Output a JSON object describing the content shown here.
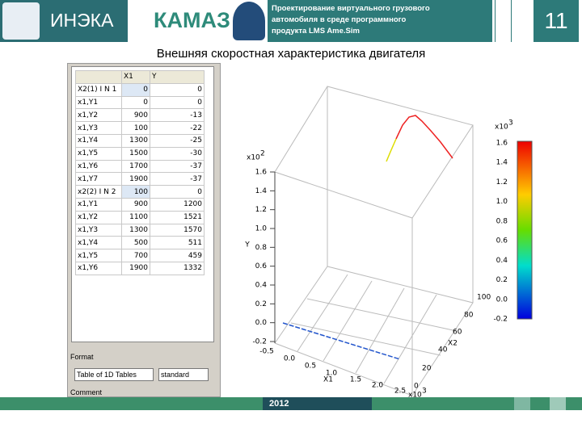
{
  "header": {
    "left_logo_text": "ИНЭКА",
    "brand": "КАМАЗ",
    "project_lines": [
      "Проектирование виртуального грузового",
      "автомобиля в среде программного",
      "продукта LMS Ame.Sim"
    ],
    "slide_number": "11"
  },
  "title": "Внешняя скоростная характеристика двигателя",
  "table": {
    "columns": [
      "X1",
      "Y"
    ],
    "rows": [
      [
        "X2(1) I N 1",
        0,
        0
      ],
      [
        "x1,Y1",
        0,
        0
      ],
      [
        "x1,Y2",
        900,
        -13
      ],
      [
        "x1,Y3",
        100,
        -22
      ],
      [
        "x1,Y4",
        1300,
        -25
      ],
      [
        "x1,Y5",
        1500,
        -30
      ],
      [
        "x1,Y6",
        1700,
        -37
      ],
      [
        "x1,Y7",
        1900,
        -37
      ],
      [
        "x2(2) I N 2",
        100,
        0
      ],
      [
        "x1,Y1",
        900,
        1200
      ],
      [
        "x1,Y2",
        1100,
        1521
      ],
      [
        "x1,Y3",
        1300,
        1570
      ],
      [
        "x1,Y4",
        500,
        511
      ],
      [
        "x1,Y5",
        700,
        459
      ],
      [
        "x1,Y6",
        1900,
        1332
      ]
    ]
  },
  "format": {
    "label": "Format",
    "options": [
      "Table of 1D Tables",
      "standard"
    ]
  },
  "comment_label": "Comment",
  "plot": {
    "z_label": "Y",
    "x1_label": "X1",
    "x2_label": "X2",
    "z_scale": {
      "base": "x10",
      "exp": "2"
    },
    "x1_scale": {
      "base": "x10",
      "exp": "3"
    },
    "colorbar_scale": {
      "base": "x10",
      "exp": "3"
    },
    "z_ticks": [
      "1.6",
      "1.4",
      "1.2",
      "1.0",
      "0.8",
      "0.6",
      "0.4",
      "0.2",
      "0.0",
      "-0.2"
    ],
    "x1_ticks": [
      "-0.5",
      "0.0",
      "0.5",
      "1.0",
      "1.5",
      "2.0",
      "2.5"
    ],
    "x2_ticks": [
      "0",
      "20",
      "40",
      "60",
      "80",
      "100"
    ],
    "colorbar_ticks": [
      "1.6",
      "1.4",
      "1.2",
      "1.0",
      "0.8",
      "0.6",
      "0.4",
      "0.2",
      "0.0",
      "-0.2"
    ]
  },
  "footer": {
    "year": "2012"
  }
}
